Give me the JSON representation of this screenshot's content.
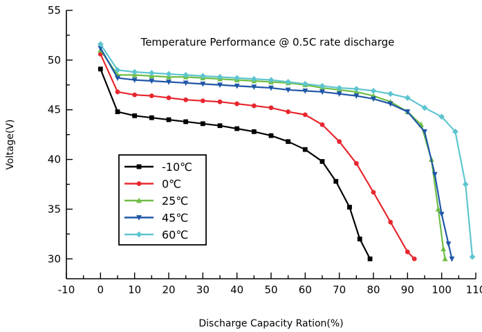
{
  "chart_data": {
    "type": "line",
    "title": "Temperature Performance @ 0.5C rate discharge",
    "xlabel": "Discharge Capacity Ration(%)",
    "ylabel": "Voltage(V)",
    "xlim": [
      -10,
      110
    ],
    "ylim": [
      28,
      55
    ],
    "x_ticks": [
      -10,
      0,
      10,
      20,
      30,
      40,
      50,
      60,
      70,
      80,
      90,
      100,
      110
    ],
    "y_ticks": [
      30,
      35,
      40,
      45,
      50,
      55
    ],
    "grid": false,
    "legend_position": "left-middle",
    "series": [
      {
        "name": "-10℃",
        "color": "#000000",
        "marker": "square",
        "points": [
          [
            0,
            49.1
          ],
          [
            5,
            44.8
          ],
          [
            10,
            44.4
          ],
          [
            15,
            44.2
          ],
          [
            20,
            44.0
          ],
          [
            25,
            43.8
          ],
          [
            30,
            43.6
          ],
          [
            35,
            43.4
          ],
          [
            40,
            43.1
          ],
          [
            45,
            42.8
          ],
          [
            50,
            42.4
          ],
          [
            55,
            41.8
          ],
          [
            60,
            41.0
          ],
          [
            65,
            39.8
          ],
          [
            69,
            37.8
          ],
          [
            73,
            35.2
          ],
          [
            76,
            32.0
          ],
          [
            79,
            30.0
          ]
        ]
      },
      {
        "name": "0℃",
        "color": "#e8262e",
        "marker": "circle",
        "points": [
          [
            0,
            50.6
          ],
          [
            5,
            46.8
          ],
          [
            10,
            46.5
          ],
          [
            15,
            46.4
          ],
          [
            20,
            46.2
          ],
          [
            25,
            46.0
          ],
          [
            30,
            45.9
          ],
          [
            35,
            45.8
          ],
          [
            40,
            45.6
          ],
          [
            45,
            45.4
          ],
          [
            50,
            45.2
          ],
          [
            55,
            44.8
          ],
          [
            60,
            44.5
          ],
          [
            65,
            43.5
          ],
          [
            70,
            41.8
          ],
          [
            75,
            39.6
          ],
          [
            80,
            36.7
          ],
          [
            85,
            33.7
          ],
          [
            90,
            30.7
          ],
          [
            92,
            30.0
          ]
        ]
      },
      {
        "name": "25℃",
        "color": "#6ebd45",
        "marker": "triangle-up",
        "points": [
          [
            0,
            51.0
          ],
          [
            5,
            48.5
          ],
          [
            10,
            48.5
          ],
          [
            15,
            48.4
          ],
          [
            20,
            48.3
          ],
          [
            25,
            48.3
          ],
          [
            30,
            48.2
          ],
          [
            35,
            48.1
          ],
          [
            40,
            48.0
          ],
          [
            45,
            47.9
          ],
          [
            50,
            47.8
          ],
          [
            55,
            47.7
          ],
          [
            60,
            47.5
          ],
          [
            65,
            47.2
          ],
          [
            70,
            47.0
          ],
          [
            75,
            46.8
          ],
          [
            80,
            46.4
          ],
          [
            85,
            45.8
          ],
          [
            90,
            44.8
          ],
          [
            94,
            43.5
          ],
          [
            97,
            40.0
          ],
          [
            99,
            35.0
          ],
          [
            100.5,
            31.0
          ],
          [
            101,
            30.0
          ]
        ]
      },
      {
        "name": "45℃",
        "color": "#1f56a8",
        "marker": "triangle-down",
        "points": [
          [
            0,
            51.2
          ],
          [
            5,
            48.2
          ],
          [
            10,
            48.0
          ],
          [
            15,
            47.9
          ],
          [
            20,
            47.8
          ],
          [
            25,
            47.7
          ],
          [
            30,
            47.6
          ],
          [
            35,
            47.5
          ],
          [
            40,
            47.4
          ],
          [
            45,
            47.3
          ],
          [
            50,
            47.2
          ],
          [
            55,
            47.0
          ],
          [
            60,
            46.9
          ],
          [
            65,
            46.8
          ],
          [
            70,
            46.6
          ],
          [
            75,
            46.4
          ],
          [
            80,
            46.1
          ],
          [
            85,
            45.6
          ],
          [
            90,
            44.8
          ],
          [
            95,
            42.8
          ],
          [
            98,
            38.5
          ],
          [
            100,
            34.5
          ],
          [
            102,
            31.5
          ],
          [
            103,
            30.0
          ]
        ]
      },
      {
        "name": "60℃",
        "color": "#5ec5cf",
        "marker": "diamond",
        "points": [
          [
            0,
            51.6
          ],
          [
            5,
            49.0
          ],
          [
            10,
            48.8
          ],
          [
            15,
            48.7
          ],
          [
            20,
            48.6
          ],
          [
            25,
            48.5
          ],
          [
            30,
            48.4
          ],
          [
            35,
            48.3
          ],
          [
            40,
            48.2
          ],
          [
            45,
            48.1
          ],
          [
            50,
            48.0
          ],
          [
            55,
            47.8
          ],
          [
            60,
            47.6
          ],
          [
            65,
            47.4
          ],
          [
            70,
            47.2
          ],
          [
            75,
            47.1
          ],
          [
            80,
            46.9
          ],
          [
            85,
            46.6
          ],
          [
            90,
            46.2
          ],
          [
            95,
            45.2
          ],
          [
            100,
            44.3
          ],
          [
            104,
            42.8
          ],
          [
            107,
            37.5
          ],
          [
            109,
            30.2
          ]
        ]
      }
    ]
  }
}
